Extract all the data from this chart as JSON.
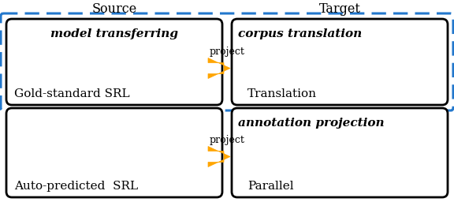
{
  "bg_color": "#ffffff",
  "source_label": "Source",
  "target_label": "Target",
  "top_left_bold_italic": "model transferring",
  "top_left_main": "Gold-standard SRL",
  "top_right_bold_italic": "corpus translation",
  "top_right_main": "Translation",
  "bottom_left_main": "Auto-predicted  SRL",
  "bottom_right_bold_italic": "annotation projection",
  "bottom_right_main": "Parallel",
  "arrow_top_label": "project",
  "arrow_bottom_label": "project",
  "arrow_color": "#FFA500",
  "dashed_rect_color": "#2277CC",
  "solid_rect_color": "#000000",
  "header_fontsize": 11.5,
  "label_fontsize": 11,
  "italic_fontsize": 11,
  "arrow_label_fontsize": 9,
  "fig_width": 5.76,
  "fig_height": 2.56,
  "dpi": 100
}
